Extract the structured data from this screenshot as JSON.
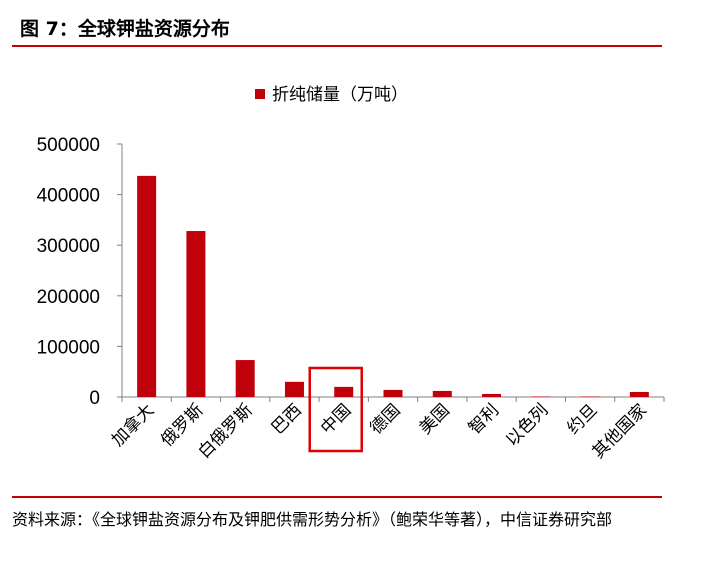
{
  "figure_title": "图 7：全球钾盐资源分布",
  "source_note": "资料来源：《全球钾盐资源分布及钾肥供需形势分析》（鲍荣华等著），中信证券研究部",
  "highlighted_category": "中国",
  "colors": {
    "bar": "#c0000b",
    "rule": "#c0000b",
    "highlight_box": "#e00000",
    "axis": "#808080"
  },
  "chart_data": {
    "type": "bar",
    "title": "",
    "xlabel": "",
    "ylabel": "",
    "legend": {
      "position": "top-center",
      "entries": [
        "折纯储量（万吨）"
      ]
    },
    "categories": [
      "加拿大",
      "俄罗斯",
      "白俄罗斯",
      "巴西",
      "中国",
      "德国",
      "美国",
      "智利",
      "以色列",
      "约旦",
      "其他国家"
    ],
    "series": [
      {
        "name": "折纯储量（万吨）",
        "values": [
          437000,
          328000,
          73000,
          30000,
          20000,
          14000,
          12000,
          6000,
          1000,
          1000,
          10000
        ]
      }
    ],
    "ylim": [
      0,
      500000
    ],
    "yticks": [
      0,
      100000,
      200000,
      300000,
      400000,
      500000
    ],
    "ytick_labels": [
      "0",
      "100000",
      "200000",
      "300000",
      "400000",
      "500000"
    ],
    "grid": false
  }
}
